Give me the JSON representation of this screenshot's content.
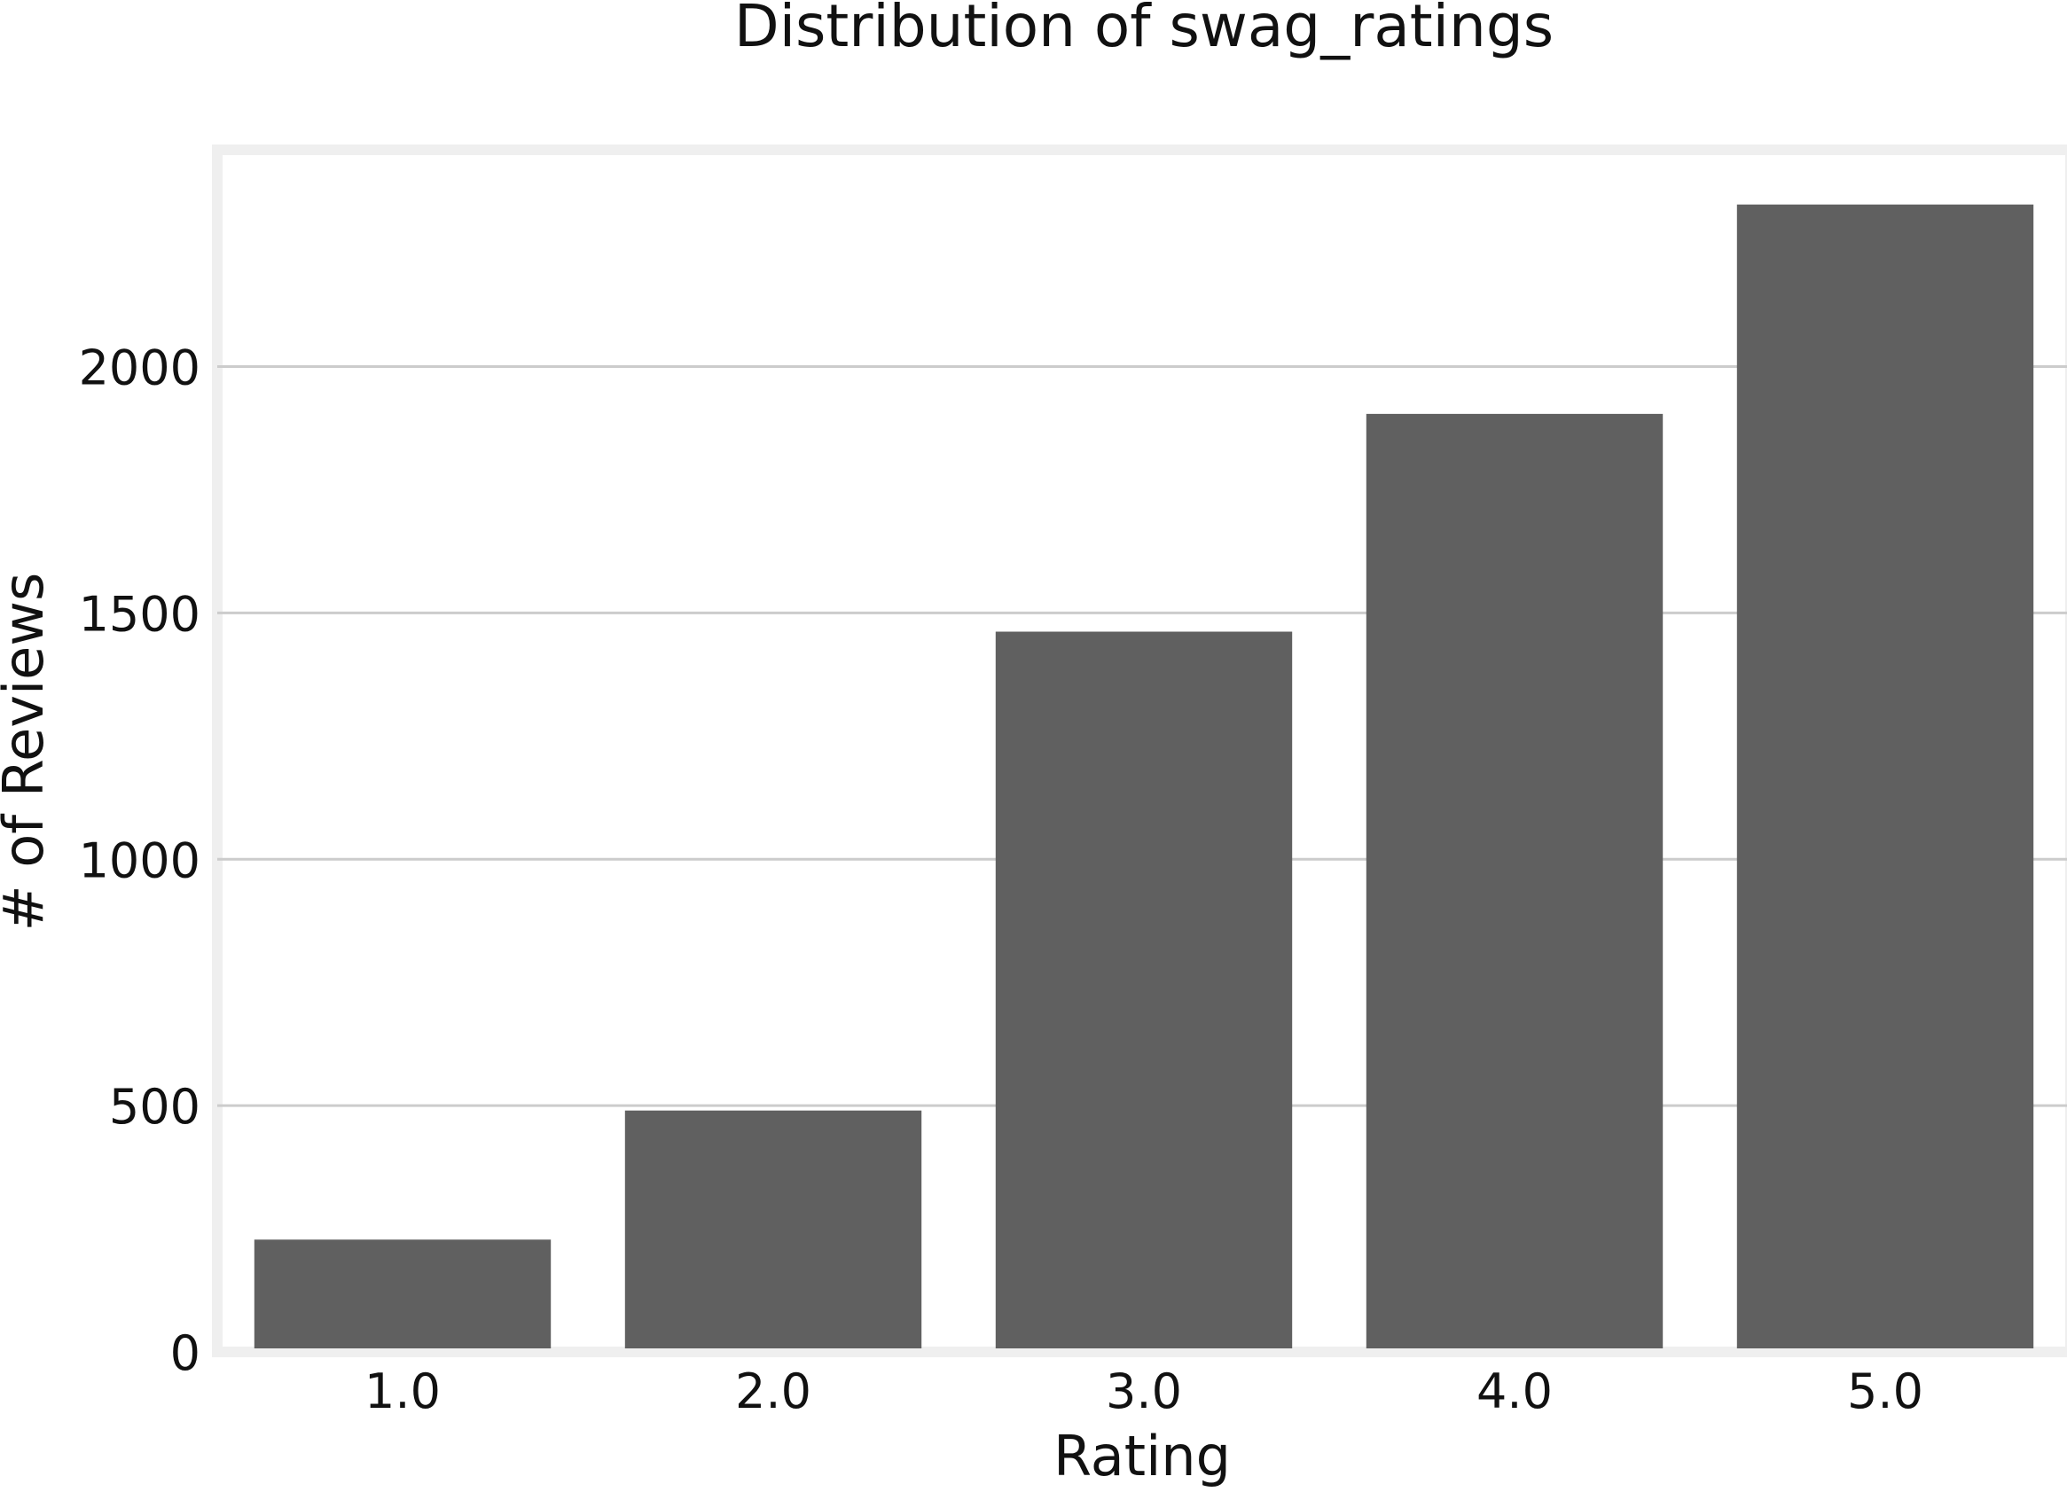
{
  "chart_data": {
    "type": "bar",
    "title": "Distribution of swag_ratings",
    "xlabel": "Rating",
    "ylabel": "# of Reviews",
    "categories": [
      "1.0",
      "2.0",
      "3.0",
      "4.0",
      "5.0"
    ],
    "values": [
      228,
      490,
      1462,
      1904,
      2329
    ],
    "ylim": [
      0,
      2440
    ],
    "yticks": [
      0,
      500,
      1000,
      1500,
      2000
    ],
    "grid": true,
    "colors": {
      "bar": "#606060",
      "grid": "#cccccc",
      "frame": "#efefef",
      "text": "#111111"
    }
  }
}
